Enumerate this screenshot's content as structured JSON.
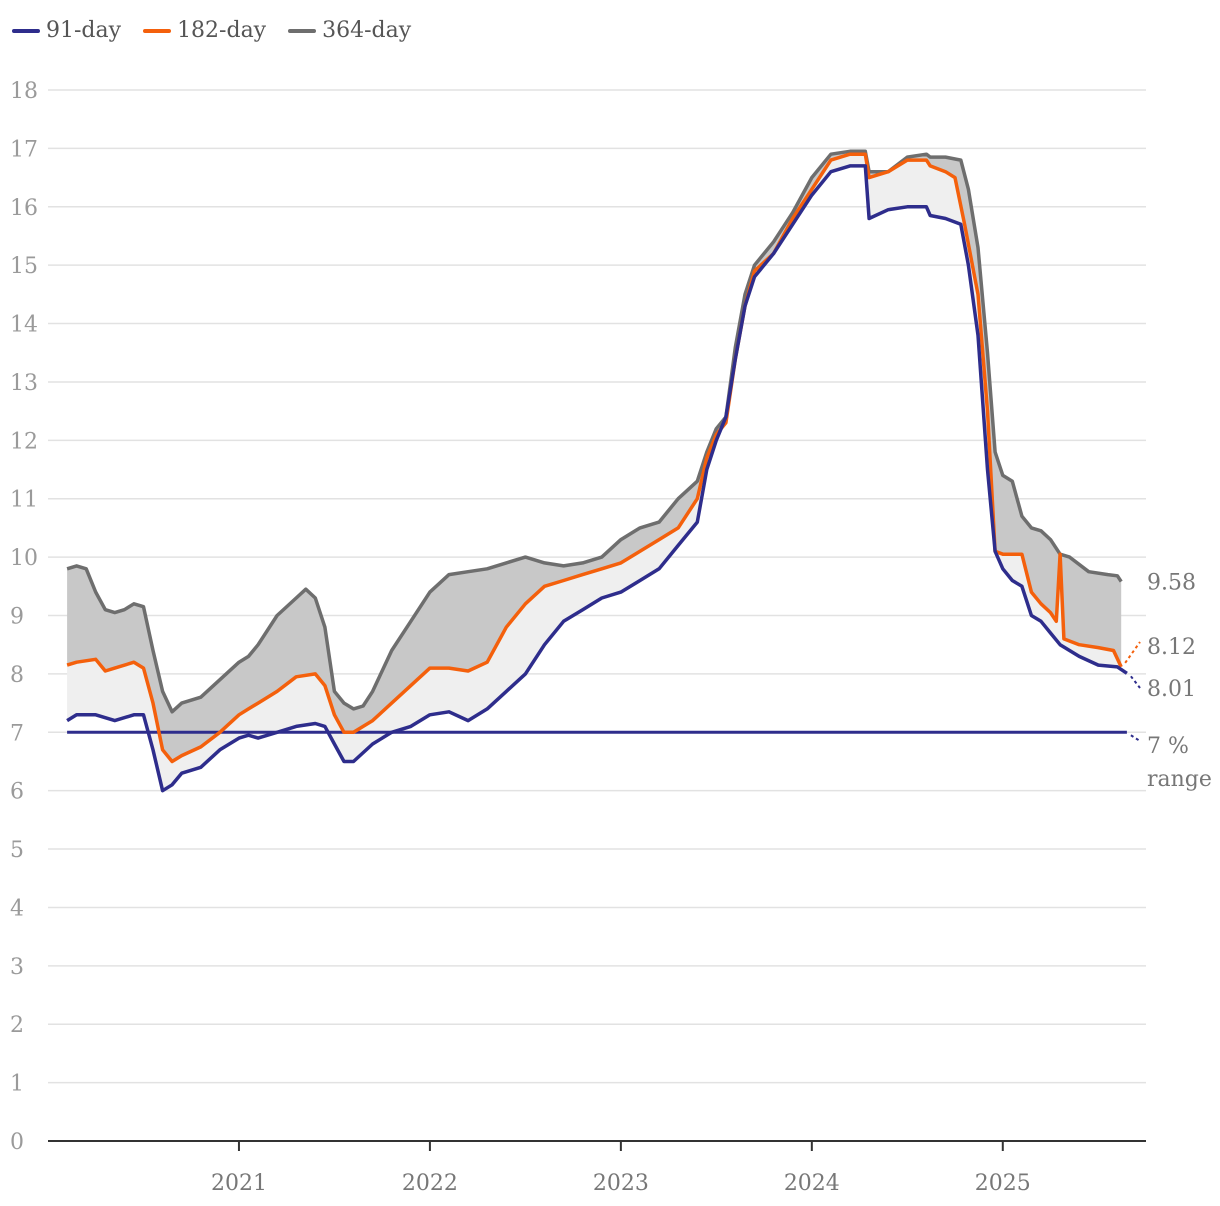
{
  "chart_data": {
    "type": "line",
    "title": "",
    "xlabel": "",
    "ylabel": "",
    "ylim": [
      0,
      18
    ],
    "xlim": [
      2020.0,
      2025.75
    ],
    "yticks": [
      "0",
      "1",
      "2",
      "3",
      "4",
      "5",
      "6",
      "7",
      "8",
      "9",
      "10",
      "11",
      "12",
      "13",
      "14",
      "15",
      "16",
      "17",
      "18"
    ],
    "xticks": [
      {
        "x": 2021.0,
        "label": "2021"
      },
      {
        "x": 2022.0,
        "label": "2022"
      },
      {
        "x": 2023.0,
        "label": "2023"
      },
      {
        "x": 2024.0,
        "label": "2024"
      },
      {
        "x": 2025.0,
        "label": "2025"
      }
    ],
    "grid": true,
    "legend_position": "top-left",
    "band_colors": {
      "outer": "#c8c8c8",
      "inner": "#efefef"
    },
    "series": [
      {
        "name": "91-day",
        "color": "#2e2d8c",
        "end_label": "8.01",
        "points": [
          [
            2020.1,
            7.2
          ],
          [
            2020.15,
            7.3
          ],
          [
            2020.25,
            7.3
          ],
          [
            2020.35,
            7.2
          ],
          [
            2020.45,
            7.3
          ],
          [
            2020.5,
            7.3
          ],
          [
            2020.55,
            6.7
          ],
          [
            2020.6,
            6.0
          ],
          [
            2020.65,
            6.1
          ],
          [
            2020.7,
            6.3
          ],
          [
            2020.8,
            6.4
          ],
          [
            2020.9,
            6.7
          ],
          [
            2021.0,
            6.9
          ],
          [
            2021.05,
            6.95
          ],
          [
            2021.1,
            6.9
          ],
          [
            2021.2,
            7.0
          ],
          [
            2021.3,
            7.1
          ],
          [
            2021.4,
            7.15
          ],
          [
            2021.45,
            7.1
          ],
          [
            2021.5,
            6.8
          ],
          [
            2021.55,
            6.5
          ],
          [
            2021.6,
            6.5
          ],
          [
            2021.7,
            6.8
          ],
          [
            2021.8,
            7.0
          ],
          [
            2021.9,
            7.1
          ],
          [
            2022.0,
            7.3
          ],
          [
            2022.1,
            7.35
          ],
          [
            2022.2,
            7.2
          ],
          [
            2022.3,
            7.4
          ],
          [
            2022.4,
            7.7
          ],
          [
            2022.5,
            8.0
          ],
          [
            2022.6,
            8.5
          ],
          [
            2022.7,
            8.9
          ],
          [
            2022.8,
            9.1
          ],
          [
            2022.9,
            9.3
          ],
          [
            2023.0,
            9.4
          ],
          [
            2023.1,
            9.6
          ],
          [
            2023.2,
            9.8
          ],
          [
            2023.3,
            10.2
          ],
          [
            2023.4,
            10.6
          ],
          [
            2023.45,
            11.5
          ],
          [
            2023.5,
            12.0
          ],
          [
            2023.55,
            12.4
          ],
          [
            2023.6,
            13.4
          ],
          [
            2023.65,
            14.3
          ],
          [
            2023.7,
            14.8
          ],
          [
            2023.8,
            15.2
          ],
          [
            2023.9,
            15.7
          ],
          [
            2024.0,
            16.2
          ],
          [
            2024.1,
            16.6
          ],
          [
            2024.2,
            16.7
          ],
          [
            2024.28,
            16.7
          ],
          [
            2024.3,
            15.8
          ],
          [
            2024.4,
            15.95
          ],
          [
            2024.5,
            16.0
          ],
          [
            2024.6,
            16.0
          ],
          [
            2024.62,
            15.85
          ],
          [
            2024.7,
            15.8
          ],
          [
            2024.78,
            15.7
          ],
          [
            2024.82,
            15.0
          ],
          [
            2024.87,
            13.8
          ],
          [
            2024.92,
            11.5
          ],
          [
            2024.96,
            10.1
          ],
          [
            2025.0,
            9.8
          ],
          [
            2025.05,
            9.6
          ],
          [
            2025.1,
            9.5
          ],
          [
            2025.15,
            9.0
          ],
          [
            2025.2,
            8.9
          ],
          [
            2025.25,
            8.7
          ],
          [
            2025.3,
            8.5
          ],
          [
            2025.4,
            8.3
          ],
          [
            2025.5,
            8.15
          ],
          [
            2025.6,
            8.12
          ],
          [
            2025.65,
            8.01
          ]
        ]
      },
      {
        "name": "182-day",
        "color": "#f4600c",
        "end_label": "8.12",
        "points": [
          [
            2020.1,
            8.15
          ],
          [
            2020.15,
            8.2
          ],
          [
            2020.25,
            8.25
          ],
          [
            2020.3,
            8.05
          ],
          [
            2020.35,
            8.1
          ],
          [
            2020.45,
            8.2
          ],
          [
            2020.5,
            8.1
          ],
          [
            2020.55,
            7.5
          ],
          [
            2020.6,
            6.7
          ],
          [
            2020.65,
            6.5
          ],
          [
            2020.7,
            6.6
          ],
          [
            2020.8,
            6.75
          ],
          [
            2020.9,
            7.0
          ],
          [
            2021.0,
            7.3
          ],
          [
            2021.05,
            7.4
          ],
          [
            2021.1,
            7.5
          ],
          [
            2021.2,
            7.7
          ],
          [
            2021.3,
            7.95
          ],
          [
            2021.4,
            8.0
          ],
          [
            2021.45,
            7.8
          ],
          [
            2021.5,
            7.3
          ],
          [
            2021.55,
            7.0
          ],
          [
            2021.6,
            7.0
          ],
          [
            2021.7,
            7.2
          ],
          [
            2021.8,
            7.5
          ],
          [
            2021.9,
            7.8
          ],
          [
            2022.0,
            8.1
          ],
          [
            2022.1,
            8.1
          ],
          [
            2022.2,
            8.05
          ],
          [
            2022.3,
            8.2
          ],
          [
            2022.4,
            8.8
          ],
          [
            2022.5,
            9.2
          ],
          [
            2022.6,
            9.5
          ],
          [
            2022.7,
            9.6
          ],
          [
            2022.8,
            9.7
          ],
          [
            2022.9,
            9.8
          ],
          [
            2023.0,
            9.9
          ],
          [
            2023.1,
            10.1
          ],
          [
            2023.2,
            10.3
          ],
          [
            2023.3,
            10.5
          ],
          [
            2023.4,
            11.0
          ],
          [
            2023.45,
            11.7
          ],
          [
            2023.5,
            12.1
          ],
          [
            2023.55,
            12.3
          ],
          [
            2023.6,
            13.4
          ],
          [
            2023.65,
            14.3
          ],
          [
            2023.7,
            14.9
          ],
          [
            2023.8,
            15.2
          ],
          [
            2023.9,
            15.8
          ],
          [
            2024.0,
            16.3
          ],
          [
            2024.1,
            16.8
          ],
          [
            2024.2,
            16.9
          ],
          [
            2024.28,
            16.9
          ],
          [
            2024.3,
            16.5
          ],
          [
            2024.4,
            16.6
          ],
          [
            2024.5,
            16.8
          ],
          [
            2024.6,
            16.8
          ],
          [
            2024.62,
            16.7
          ],
          [
            2024.7,
            16.6
          ],
          [
            2024.75,
            16.5
          ],
          [
            2024.8,
            15.7
          ],
          [
            2024.87,
            14.5
          ],
          [
            2024.92,
            12.5
          ],
          [
            2024.96,
            10.1
          ],
          [
            2025.0,
            10.05
          ],
          [
            2025.05,
            10.05
          ],
          [
            2025.1,
            10.05
          ],
          [
            2025.15,
            9.4
          ],
          [
            2025.2,
            9.2
          ],
          [
            2025.25,
            9.05
          ],
          [
            2025.28,
            8.9
          ],
          [
            2025.3,
            10.05
          ],
          [
            2025.32,
            8.6
          ],
          [
            2025.4,
            8.5
          ],
          [
            2025.5,
            8.45
          ],
          [
            2025.58,
            8.4
          ],
          [
            2025.62,
            8.12
          ]
        ]
      },
      {
        "name": "364-day",
        "color": "#6e6e6e",
        "end_label": "9.58",
        "points": [
          [
            2020.1,
            9.8
          ],
          [
            2020.15,
            9.85
          ],
          [
            2020.2,
            9.8
          ],
          [
            2020.25,
            9.4
          ],
          [
            2020.3,
            9.1
          ],
          [
            2020.35,
            9.05
          ],
          [
            2020.4,
            9.1
          ],
          [
            2020.45,
            9.2
          ],
          [
            2020.5,
            9.15
          ],
          [
            2020.55,
            8.4
          ],
          [
            2020.6,
            7.7
          ],
          [
            2020.65,
            7.35
          ],
          [
            2020.7,
            7.5
          ],
          [
            2020.8,
            7.6
          ],
          [
            2020.9,
            7.9
          ],
          [
            2021.0,
            8.2
          ],
          [
            2021.05,
            8.3
          ],
          [
            2021.1,
            8.5
          ],
          [
            2021.2,
            9.0
          ],
          [
            2021.3,
            9.3
          ],
          [
            2021.35,
            9.45
          ],
          [
            2021.4,
            9.3
          ],
          [
            2021.45,
            8.8
          ],
          [
            2021.5,
            7.7
          ],
          [
            2021.55,
            7.5
          ],
          [
            2021.6,
            7.4
          ],
          [
            2021.65,
            7.45
          ],
          [
            2021.7,
            7.7
          ],
          [
            2021.8,
            8.4
          ],
          [
            2021.9,
            8.9
          ],
          [
            2022.0,
            9.4
          ],
          [
            2022.1,
            9.7
          ],
          [
            2022.2,
            9.75
          ],
          [
            2022.3,
            9.8
          ],
          [
            2022.4,
            9.9
          ],
          [
            2022.5,
            10.0
          ],
          [
            2022.6,
            9.9
          ],
          [
            2022.7,
            9.85
          ],
          [
            2022.8,
            9.9
          ],
          [
            2022.9,
            10.0
          ],
          [
            2023.0,
            10.3
          ],
          [
            2023.1,
            10.5
          ],
          [
            2023.2,
            10.6
          ],
          [
            2023.3,
            11.0
          ],
          [
            2023.4,
            11.3
          ],
          [
            2023.45,
            11.8
          ],
          [
            2023.5,
            12.2
          ],
          [
            2023.55,
            12.4
          ],
          [
            2023.6,
            13.6
          ],
          [
            2023.65,
            14.5
          ],
          [
            2023.7,
            15.0
          ],
          [
            2023.8,
            15.4
          ],
          [
            2023.9,
            15.9
          ],
          [
            2024.0,
            16.5
          ],
          [
            2024.1,
            16.9
          ],
          [
            2024.2,
            16.95
          ],
          [
            2024.28,
            16.95
          ],
          [
            2024.3,
            16.6
          ],
          [
            2024.4,
            16.6
          ],
          [
            2024.5,
            16.85
          ],
          [
            2024.6,
            16.9
          ],
          [
            2024.62,
            16.85
          ],
          [
            2024.7,
            16.85
          ],
          [
            2024.78,
            16.8
          ],
          [
            2024.82,
            16.3
          ],
          [
            2024.87,
            15.3
          ],
          [
            2024.92,
            13.5
          ],
          [
            2024.96,
            11.8
          ],
          [
            2025.0,
            11.4
          ],
          [
            2025.05,
            11.3
          ],
          [
            2025.1,
            10.7
          ],
          [
            2025.15,
            10.5
          ],
          [
            2025.2,
            10.45
          ],
          [
            2025.25,
            10.3
          ],
          [
            2025.3,
            10.05
          ],
          [
            2025.35,
            10.0
          ],
          [
            2025.45,
            9.75
          ],
          [
            2025.55,
            9.7
          ],
          [
            2025.6,
            9.68
          ],
          [
            2025.62,
            9.58
          ]
        ]
      }
    ],
    "reference_line": {
      "y": 7,
      "color": "#2e2d8c",
      "label_line1": "7 %",
      "label_line2": "range"
    }
  }
}
